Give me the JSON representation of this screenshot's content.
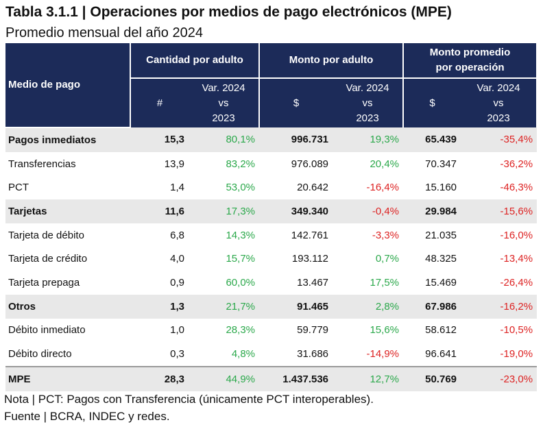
{
  "header": {
    "title": "Tabla 3.1.1 | Operaciones por medios de pago electrónicos (MPE)",
    "subtitle": "Promedio mensual del año 2024"
  },
  "table": {
    "row_header": "Medio de pago",
    "groups": [
      [
        "Cantidad por adulto"
      ],
      [
        "Monto por adulto"
      ],
      [
        "Monto promedio",
        "por operación"
      ]
    ],
    "subheaders": [
      [
        "#"
      ],
      [
        "Var. 2024",
        "vs",
        "2023"
      ],
      [
        "$"
      ],
      [
        "Var. 2024",
        "vs",
        "2023"
      ],
      [
        "$"
      ],
      [
        "Var. 2024",
        "vs",
        "2023"
      ]
    ],
    "rows": [
      {
        "kind": "group",
        "cells": [
          "Pagos inmediatos",
          "15,3",
          "80,1%",
          "996.731",
          "19,3%",
          "65.439",
          "-35,4%"
        ]
      },
      {
        "kind": "item",
        "cells": [
          "Transferencias",
          "13,9",
          "83,2%",
          "976.089",
          "20,4%",
          "70.347",
          "-36,2%"
        ]
      },
      {
        "kind": "item",
        "cells": [
          "PCT",
          "1,4",
          "53,0%",
          "20.642",
          "-16,4%",
          "15.160",
          "-46,3%"
        ]
      },
      {
        "kind": "group",
        "cells": [
          "Tarjetas",
          "11,6",
          "17,3%",
          "349.340",
          "-0,4%",
          "29.984",
          "-15,6%"
        ]
      },
      {
        "kind": "item",
        "cells": [
          "Tarjeta de débito",
          "6,8",
          "14,3%",
          "142.761",
          "-3,3%",
          "21.035",
          "-16,0%"
        ]
      },
      {
        "kind": "item",
        "cells": [
          "Tarjeta de crédito",
          "4,0",
          "15,7%",
          "193.112",
          "0,7%",
          "48.325",
          "-13,4%"
        ]
      },
      {
        "kind": "item",
        "cells": [
          "Tarjeta prepaga",
          "0,9",
          "60,0%",
          "13.467",
          "17,5%",
          "15.469",
          "-26,4%"
        ]
      },
      {
        "kind": "group",
        "cells": [
          "Otros",
          "1,3",
          "21,7%",
          "91.465",
          "2,8%",
          "67.986",
          "-16,2%"
        ]
      },
      {
        "kind": "item",
        "cells": [
          "Débito inmediato",
          "1,0",
          "28,3%",
          "59.779",
          "15,6%",
          "58.612",
          "-10,5%"
        ]
      },
      {
        "kind": "item",
        "cells": [
          "Débito directo",
          "0,3",
          "4,8%",
          "31.686",
          "-14,9%",
          "96.641",
          "-19,0%"
        ]
      },
      {
        "kind": "total",
        "cells": [
          "MPE",
          "28,3",
          "44,9%",
          "1.437.536",
          "12,7%",
          "50.769",
          "-23,0%"
        ]
      }
    ]
  },
  "footer": {
    "notes": [
      "Nota | PCT: Pagos con Transferencia (únicamente PCT interoperables).",
      "Fuente | BCRA, INDEC y redes."
    ]
  }
}
